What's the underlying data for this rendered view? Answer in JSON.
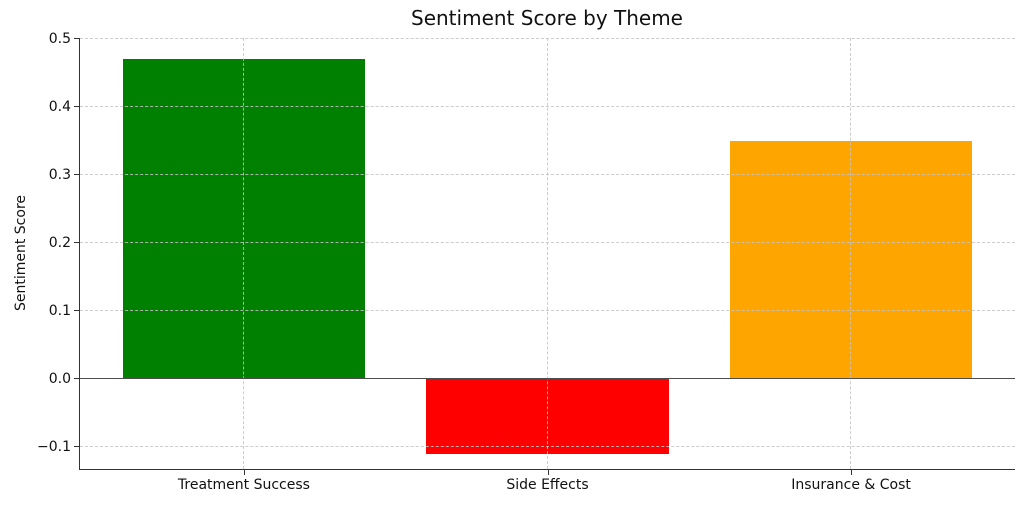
{
  "chart_data": {
    "type": "bar",
    "title": "Sentiment Score by Theme",
    "xlabel": "",
    "ylabel": "Sentiment Score",
    "categories": [
      "Treatment Success",
      "Side Effects",
      "Insurance & Cost"
    ],
    "values": [
      0.47,
      -0.11,
      0.35
    ],
    "bar_colors": [
      "#008000",
      "#ff0000",
      "#ffa500"
    ],
    "bar_width_units": 0.8,
    "yticks": [
      0.5,
      0.4,
      0.3,
      0.2,
      0.1,
      0.0,
      -0.1
    ],
    "ytick_labels": [
      "0.5",
      "0.4",
      "0.3",
      "0.2",
      "0.1",
      "0.0",
      "−0.1"
    ],
    "ylim": [
      -0.132,
      0.5015
    ],
    "xlim": [
      -0.54,
      2.54
    ],
    "grid": "dashed, both axes, drawn above bars",
    "zero_line": true,
    "legend": false
  }
}
